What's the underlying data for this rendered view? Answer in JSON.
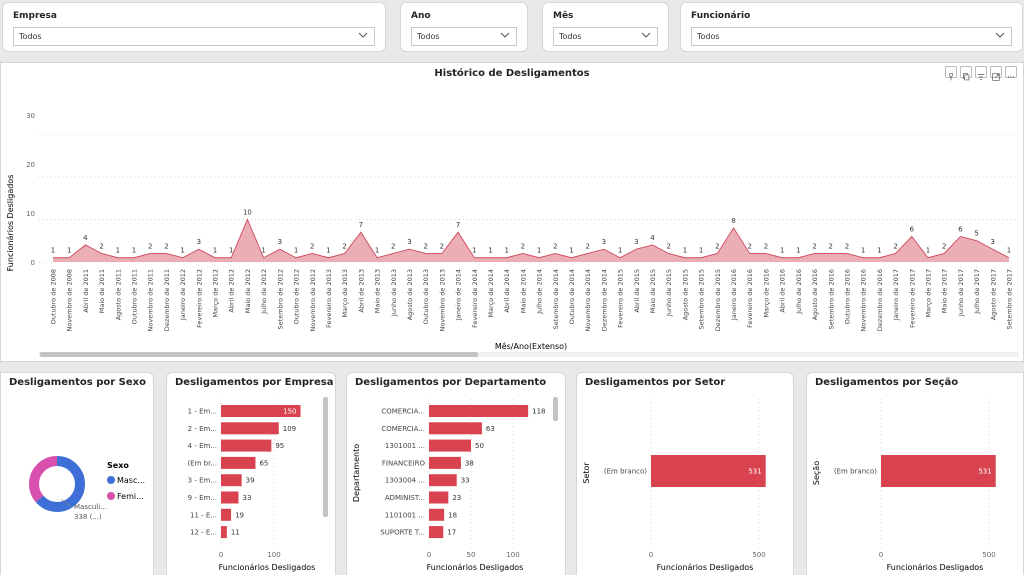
{
  "slicers": [
    {
      "title": "Empresa",
      "value": "Todos"
    },
    {
      "title": "Ano",
      "value": "Todos"
    },
    {
      "title": "Mês",
      "value": "Todos"
    },
    {
      "title": "Funcionário",
      "value": "Todos"
    }
  ],
  "history": {
    "title": "Histórico de Desligamentos",
    "xlabel": "Mês/Ano(Extenso)",
    "ylabel": "Funcionários Desligados",
    "yticks": [
      "0",
      "10",
      "20",
      "30"
    ],
    "ymax": 35,
    "color": "#E8A0A8",
    "line_color": "#D0485E"
  },
  "donut": {
    "title": "Desligamentos por Sexo",
    "legend_title": "Sexo",
    "legend": [
      "Masc...",
      "Femi..."
    ],
    "callout_name": "Masculi...",
    "callout_value": "338 (...)",
    "colors": [
      "#3D6FD6",
      "#D84FAE"
    ]
  },
  "bar_empresa": {
    "title": "Desligamentos por Empresa",
    "xlabel": "Funcionários Desligados",
    "xticks": [
      "0",
      "100"
    ]
  },
  "bar_departamento": {
    "title": "Desligamentos por Departamento",
    "xlabel": "Funcionários Desligados",
    "ylabel": "Departamento",
    "xticks": [
      "0",
      "50",
      "100"
    ]
  },
  "bar_setor": {
    "title": "Desligamentos por Setor",
    "xlabel": "Funcionários Desligados",
    "ylabel": "Setor",
    "xticks": [
      "0",
      "500"
    ]
  },
  "bar_secao": {
    "title": "Desligamentos por Seção",
    "xlabel": "Funcionários Desligados",
    "ylabel": "Seção",
    "xticks": [
      "0",
      "500"
    ]
  },
  "chart_data": [
    {
      "type": "area",
      "title": "Histórico de Desligamentos",
      "xlabel": "Mês/Ano(Extenso)",
      "ylabel": "Funcionários Desligados",
      "ylim": [
        0,
        35
      ],
      "categories": [
        "Outubro de 2008",
        "Novembro de 2008",
        "Abril de 2011",
        "Maio de 2011",
        "Agosto de 2011",
        "Outubro de 2011",
        "Novembro de 2011",
        "Dezembro de 2011",
        "Janeiro de 2012",
        "Fevereiro de 2012",
        "Março de 2012",
        "Abril de 2012",
        "Maio de 2012",
        "Julho de 2012",
        "Setembro de 2012",
        "Outubro de 2012",
        "Novembro de 2012",
        "Fevereiro de 2013",
        "Março de 2013",
        "Abril de 2013",
        "Maio de 2013",
        "Junho de 2013",
        "Agosto de 2013",
        "Outubro de 2013",
        "Novembro de 2013",
        "Janeiro de 2014",
        "Fevereiro de 2014",
        "Março de 2014",
        "Abril de 2014",
        "Maio de 2014",
        "Julho de 2014",
        "Setembro de 2014",
        "Outubro de 2014",
        "Novembro de 2014",
        "Dezembro de 2014",
        "Fevereiro de 2015",
        "Abril de 2015",
        "Maio de 2015",
        "Junho de 2015",
        "Agosto de 2015",
        "Setembro de 2015",
        "Dezembro de 2015",
        "Janeiro de 2016",
        "Fevereiro de 2016",
        "Março de 2016",
        "Abril de 2016",
        "Julho de 2016",
        "Agosto de 2016",
        "Setembro de 2016",
        "Outubro de 2016",
        "Novembro de 2016",
        "Dezembro de 2016",
        "Janeiro de 2017",
        "Fevereiro de 2017",
        "Março de 2017",
        "Maio de 2017",
        "Junho de 2017",
        "Julho de 2017",
        "Agosto de 2017",
        "Setembro de 2017"
      ],
      "values": [
        1,
        1,
        4,
        2,
        1,
        1,
        2,
        2,
        1,
        3,
        1,
        1,
        10,
        1,
        3,
        1,
        2,
        1,
        2,
        7,
        1,
        2,
        3,
        2,
        2,
        7,
        1,
        1,
        1,
        2,
        1,
        2,
        1,
        2,
        3,
        1,
        3,
        4,
        2,
        1,
        1,
        2,
        8,
        2,
        2,
        1,
        1,
        2,
        2,
        2,
        1,
        1,
        2,
        6,
        1,
        2,
        6,
        5,
        3,
        1
      ]
    },
    {
      "type": "pie",
      "title": "Desligamentos por Sexo",
      "categories": [
        "Masculino",
        "Feminino"
      ],
      "values": [
        338,
        193
      ]
    },
    {
      "type": "bar",
      "title": "Desligamentos por Empresa",
      "xlabel": "Funcionários Desligados",
      "categories": [
        "1 - Em...",
        "2 - Em...",
        "4 - Em...",
        "(Em br...",
        "3 - Em...",
        "9 - Em...",
        "11 - E...",
        "12 - E..."
      ],
      "values": [
        150,
        109,
        95,
        65,
        39,
        33,
        19,
        11
      ],
      "xlim": [
        0,
        160
      ]
    },
    {
      "type": "bar",
      "title": "Desligamentos por Departamento",
      "xlabel": "Funcionários Desligados",
      "ylabel": "Departamento",
      "categories": [
        "COMERCIA...",
        "COMERCIA...",
        "1301001 ...",
        "FINANCEIRO",
        "1303004 ...",
        "ADMINIST...",
        "1101001 ...",
        "SUPORTE T..."
      ],
      "values": [
        118,
        63,
        50,
        38,
        33,
        23,
        18,
        17
      ],
      "xlim": [
        0,
        125
      ]
    },
    {
      "type": "bar",
      "title": "Desligamentos por Setor",
      "xlabel": "Funcionários Desligados",
      "ylabel": "Setor",
      "categories": [
        "(Em branco)"
      ],
      "values": [
        531
      ],
      "xlim": [
        0,
        550
      ]
    },
    {
      "type": "bar",
      "title": "Desligamentos por Seção",
      "xlabel": "Funcionários Desligados",
      "ylabel": "Seção",
      "categories": [
        "(Em branco)"
      ],
      "values": [
        531
      ],
      "xlim": [
        0,
        550
      ]
    }
  ]
}
